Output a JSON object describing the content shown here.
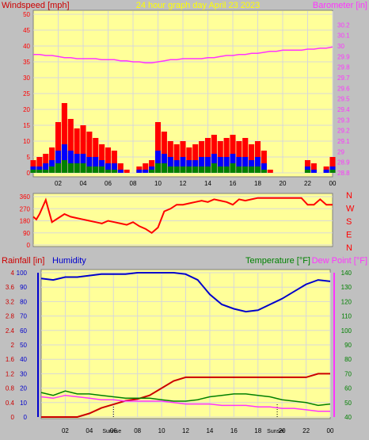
{
  "colors": {
    "background": "#c0c0c0",
    "plot_bg": "#ffff99",
    "grid": "#d8d8d8",
    "wind_gust": "#ff0000",
    "wind_avg": "#0000ff",
    "wind_low": "#008000",
    "barometer": "#ff33ff",
    "direction": "#ff0000",
    "rainfall": "#cc0000",
    "humidity": "#0000cc",
    "temperature": "#008000",
    "dewpoint": "#ff33ff",
    "title": "#ffff00"
  },
  "chart_data": [
    {
      "type": "bar",
      "title": "24 hour graph day   April 23 2023",
      "left_axis_label": "Windspeed [mph]",
      "right_axis_label": "Barometer [in]",
      "ylim": [
        0,
        50
      ],
      "y2lim": [
        28.8,
        30.3
      ],
      "yticks": [
        "0",
        "5",
        "10",
        "15",
        "20",
        "25",
        "30",
        "35",
        "40",
        "45",
        "50"
      ],
      "y2ticks": [
        "28.8",
        "28.9",
        "29",
        "29.1",
        "29.2",
        "29.3",
        "29.4",
        "29.5",
        "29.6",
        "29.7",
        "29.8",
        "29.9",
        "30",
        "30.1",
        "30.2"
      ],
      "xticks": [
        "02",
        "04",
        "06",
        "08",
        "10",
        "12",
        "14",
        "16",
        "18",
        "20",
        "22",
        "00"
      ],
      "x": [
        0,
        0.5,
        1,
        1.5,
        2,
        2.5,
        3,
        3.5,
        4,
        4.5,
        5,
        5.5,
        6,
        6.5,
        7,
        7.5,
        8,
        8.5,
        9,
        9.5,
        10,
        10.5,
        11,
        11.5,
        12,
        12.5,
        13,
        13.5,
        14,
        14.5,
        15,
        15.5,
        16,
        16.5,
        17,
        17.5,
        18,
        18.5,
        19,
        19.5,
        20,
        20.5,
        21,
        21.5,
        22,
        22.5,
        23,
        23.5,
        24
      ],
      "series": [
        {
          "name": "Gust",
          "values": [
            4,
            5,
            6,
            8,
            16,
            22,
            17,
            14,
            15,
            13,
            11,
            9,
            8,
            7,
            3,
            1,
            0,
            2,
            3,
            4,
            16,
            13,
            10,
            9,
            10,
            8,
            9,
            10,
            11,
            12,
            10,
            11,
            12,
            10,
            11,
            9,
            10,
            7,
            1,
            0,
            0,
            0,
            0,
            0,
            4,
            3,
            0,
            2,
            5
          ]
        },
        {
          "name": "Average",
          "values": [
            2,
            2,
            3,
            4,
            7,
            9,
            7,
            6,
            6,
            5,
            5,
            4,
            3,
            3,
            1,
            0,
            0,
            1,
            1,
            2,
            7,
            6,
            5,
            4,
            5,
            4,
            4,
            5,
            5,
            6,
            5,
            5,
            6,
            5,
            5,
            4,
            5,
            3,
            0,
            0,
            0,
            0,
            0,
            0,
            2,
            1,
            0,
            1,
            2
          ]
        },
        {
          "name": "Low",
          "values": [
            1,
            1,
            1,
            2,
            3,
            4,
            3,
            3,
            3,
            2,
            2,
            2,
            1,
            1,
            0,
            0,
            0,
            0,
            0,
            1,
            3,
            3,
            2,
            2,
            2,
            2,
            2,
            2,
            2,
            3,
            2,
            2,
            3,
            2,
            2,
            2,
            2,
            1,
            0,
            0,
            0,
            0,
            0,
            0,
            1,
            0,
            0,
            0,
            1
          ]
        },
        {
          "name": "Barometer",
          "values": [
            29.92,
            29.92,
            29.91,
            29.91,
            29.9,
            29.89,
            29.89,
            29.88,
            29.88,
            29.88,
            29.88,
            29.87,
            29.87,
            29.87,
            29.86,
            29.86,
            29.85,
            29.85,
            29.84,
            29.84,
            29.85,
            29.86,
            29.87,
            29.87,
            29.88,
            29.88,
            29.88,
            29.88,
            29.89,
            29.89,
            29.9,
            29.91,
            29.91,
            29.92,
            29.92,
            29.93,
            29.93,
            29.94,
            29.95,
            29.95,
            29.96,
            29.96,
            29.96,
            29.96,
            29.97,
            29.97,
            29.98,
            29.98,
            29.99
          ]
        }
      ]
    },
    {
      "type": "line",
      "yticks": [
        "360",
        "270",
        "180",
        "90",
        "0"
      ],
      "ylim": [
        0,
        360
      ],
      "right_labels": [
        "N",
        "W",
        "S",
        "E",
        "N"
      ],
      "x": [
        0,
        0.25,
        0.5,
        1,
        1.5,
        2,
        2.5,
        3,
        3.5,
        4,
        4.5,
        5,
        5.5,
        6,
        6.5,
        7,
        7.5,
        8,
        8.5,
        9,
        9.5,
        10,
        10.5,
        11,
        11.5,
        12,
        12.5,
        13,
        13.5,
        14,
        14.5,
        15,
        15.5,
        16,
        16.5,
        17,
        17.5,
        18,
        18.5,
        19,
        19.5,
        20,
        20.5,
        21,
        21.5,
        22,
        22.5,
        23,
        23.5,
        24
      ],
      "values": [
        210,
        190,
        230,
        335,
        170,
        200,
        230,
        210,
        200,
        190,
        180,
        170,
        160,
        180,
        170,
        160,
        150,
        170,
        140,
        120,
        90,
        130,
        250,
        270,
        300,
        300,
        310,
        320,
        330,
        320,
        340,
        330,
        320,
        300,
        340,
        330,
        340,
        350,
        350,
        350,
        350,
        350,
        350,
        350,
        350,
        300,
        300,
        340,
        300,
        300
      ]
    },
    {
      "type": "line",
      "left_axis_label": "Rainfall [in]",
      "left2_axis_label": "Humidity",
      "right_axis_label": "Temperature [°F]",
      "right2_axis_label": "Dew Point [°F]",
      "rain_ticks": [
        "0",
        "0.4",
        "0.8",
        "1.2",
        "1.6",
        "2",
        "2.4",
        "2.8",
        "3.2",
        "3.6",
        "4"
      ],
      "humidity_ticks": [
        "0",
        "10",
        "20",
        "30",
        "40",
        "50",
        "60",
        "70",
        "80",
        "90",
        "100"
      ],
      "temp_ticks": [
        "40",
        "50",
        "60",
        "70",
        "80",
        "90",
        "100",
        "110",
        "120",
        "130",
        "140"
      ],
      "xticks": [
        "02",
        "04",
        "06",
        "08",
        "10",
        "12",
        "14",
        "16",
        "18",
        "20",
        "22",
        "00"
      ],
      "marker_labels": [
        "Sunrise",
        "Sunset"
      ],
      "x": [
        0,
        1,
        2,
        3,
        4,
        5,
        6,
        7,
        8,
        9,
        10,
        11,
        12,
        13,
        14,
        15,
        16,
        17,
        18,
        19,
        20,
        21,
        22,
        23,
        24
      ],
      "series": [
        {
          "name": "Rainfall",
          "values": [
            0,
            0,
            0,
            0,
            0.1,
            0.25,
            0.35,
            0.45,
            0.5,
            0.6,
            0.8,
            1.0,
            1.1,
            1.1,
            1.1,
            1.1,
            1.1,
            1.1,
            1.1,
            1.1,
            1.1,
            1.1,
            1.1,
            1.2,
            1.2
          ]
        },
        {
          "name": "Humidity",
          "values": [
            96,
            95,
            97,
            97,
            98,
            99,
            99,
            99,
            100,
            100,
            100,
            100,
            99,
            95,
            85,
            78,
            75,
            73,
            74,
            78,
            82,
            87,
            92,
            95,
            94
          ]
        },
        {
          "name": "Temperature",
          "values": [
            57,
            55,
            58,
            56,
            56,
            55,
            54,
            53,
            53,
            53,
            52,
            51,
            51,
            52,
            54,
            55,
            56,
            56,
            55,
            54,
            52,
            51,
            50,
            48,
            49
          ]
        },
        {
          "name": "Dew Point",
          "values": [
            54,
            53,
            55,
            54,
            53,
            52,
            52,
            51,
            51,
            51,
            51,
            50,
            49,
            49,
            49,
            48,
            48,
            48,
            47,
            47,
            46,
            46,
            45,
            44,
            44
          ]
        }
      ]
    }
  ]
}
